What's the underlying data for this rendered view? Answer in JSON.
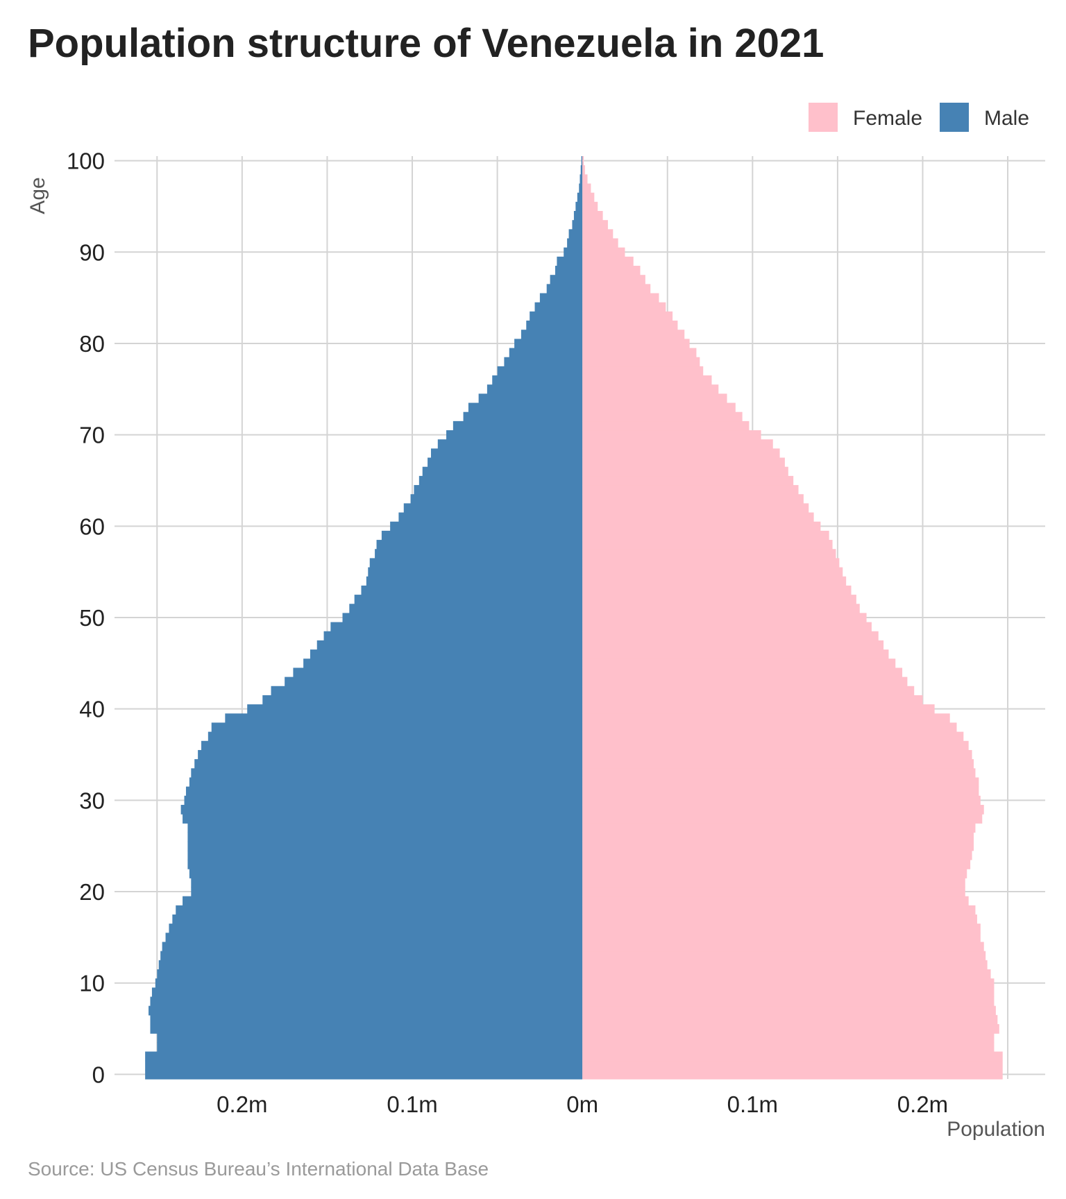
{
  "chart_data": {
    "type": "bar",
    "orientation": "horizontal-population-pyramid",
    "title": "Population structure of Venezuela in 2021",
    "xlabel": "Population",
    "ylabel": "Age",
    "source": "Source: US Census Bureau’s International Data Base",
    "x_ticks": [
      {
        "value": -200000,
        "label": "0.2m"
      },
      {
        "value": -100000,
        "label": "0.1m"
      },
      {
        "value": 0,
        "label": "0m"
      },
      {
        "value": 100000,
        "label": "0.1m"
      },
      {
        "value": 200000,
        "label": "0.2m"
      }
    ],
    "y_ticks": [
      0,
      10,
      20,
      30,
      40,
      50,
      60,
      70,
      80,
      90,
      100
    ],
    "xlim": [
      -275000,
      272000
    ],
    "ylim": [
      -0.5,
      100.5
    ],
    "grid": true,
    "legend": {
      "position": "top-right",
      "items": [
        {
          "name": "Female",
          "color": "#FFC0CB"
        },
        {
          "name": "Male",
          "color": "#4682B4"
        }
      ]
    },
    "ages": [
      0,
      1,
      2,
      3,
      4,
      5,
      6,
      7,
      8,
      9,
      10,
      11,
      12,
      13,
      14,
      15,
      16,
      17,
      18,
      19,
      20,
      21,
      22,
      23,
      24,
      25,
      26,
      27,
      28,
      29,
      30,
      31,
      32,
      33,
      34,
      35,
      36,
      37,
      38,
      39,
      40,
      41,
      42,
      43,
      44,
      45,
      46,
      47,
      48,
      49,
      50,
      51,
      52,
      53,
      54,
      55,
      56,
      57,
      58,
      59,
      60,
      61,
      62,
      63,
      64,
      65,
      66,
      67,
      68,
      69,
      70,
      71,
      72,
      73,
      74,
      75,
      76,
      77,
      78,
      79,
      80,
      81,
      82,
      83,
      84,
      85,
      86,
      87,
      88,
      89,
      90,
      91,
      92,
      93,
      94,
      95,
      96,
      97,
      98,
      99,
      100
    ],
    "series": [
      {
        "name": "Male",
        "color": "#4682B4",
        "values": [
          257000,
          257000,
          257000,
          250000,
          250000,
          254000,
          254000,
          255000,
          254000,
          253000,
          251000,
          250000,
          249000,
          248000,
          247000,
          245000,
          243000,
          241000,
          239000,
          235000,
          230000,
          230000,
          231000,
          232000,
          232000,
          232000,
          232000,
          232000,
          235000,
          236000,
          234000,
          233000,
          231000,
          230000,
          228000,
          226000,
          224000,
          220000,
          218000,
          210000,
          197000,
          188000,
          183000,
          175000,
          170000,
          164000,
          160000,
          156000,
          152000,
          148000,
          141000,
          137000,
          134000,
          130000,
          127000,
          126000,
          125000,
          122000,
          121000,
          118000,
          113000,
          108000,
          105000,
          101000,
          99000,
          96000,
          94000,
          91000,
          89000,
          85000,
          80000,
          76000,
          70000,
          67000,
          61000,
          56000,
          53000,
          50000,
          46000,
          43000,
          40000,
          36000,
          33000,
          31000,
          28000,
          25000,
          21000,
          19000,
          16000,
          15000,
          11000,
          9000,
          8000,
          6000,
          5000,
          4000,
          3000,
          2000,
          1500,
          1000,
          600
        ]
      },
      {
        "name": "Female",
        "color": "#FFC0CB",
        "values": [
          247000,
          247000,
          247000,
          242000,
          242000,
          245000,
          244000,
          243000,
          242000,
          242000,
          242000,
          240000,
          238000,
          237000,
          236000,
          234000,
          234000,
          232000,
          231000,
          227000,
          225000,
          225000,
          226000,
          228000,
          229000,
          230000,
          230000,
          231000,
          235000,
          236000,
          234000,
          233000,
          233000,
          231000,
          230000,
          229000,
          227000,
          224000,
          220000,
          216000,
          207000,
          200000,
          195000,
          191000,
          188000,
          184000,
          180000,
          177000,
          174000,
          170000,
          167000,
          163000,
          161000,
          158000,
          155000,
          153000,
          151000,
          149000,
          147000,
          145000,
          140000,
          136000,
          133000,
          130000,
          127000,
          124000,
          121000,
          119000,
          116000,
          112000,
          105000,
          98000,
          94000,
          90000,
          85000,
          80000,
          76000,
          71000,
          69000,
          67000,
          63000,
          60000,
          56000,
          53000,
          49000,
          45000,
          40000,
          37000,
          34000,
          30000,
          25000,
          21000,
          18000,
          15000,
          12000,
          9000,
          7000,
          5000,
          3000,
          1500,
          800
        ]
      }
    ]
  }
}
